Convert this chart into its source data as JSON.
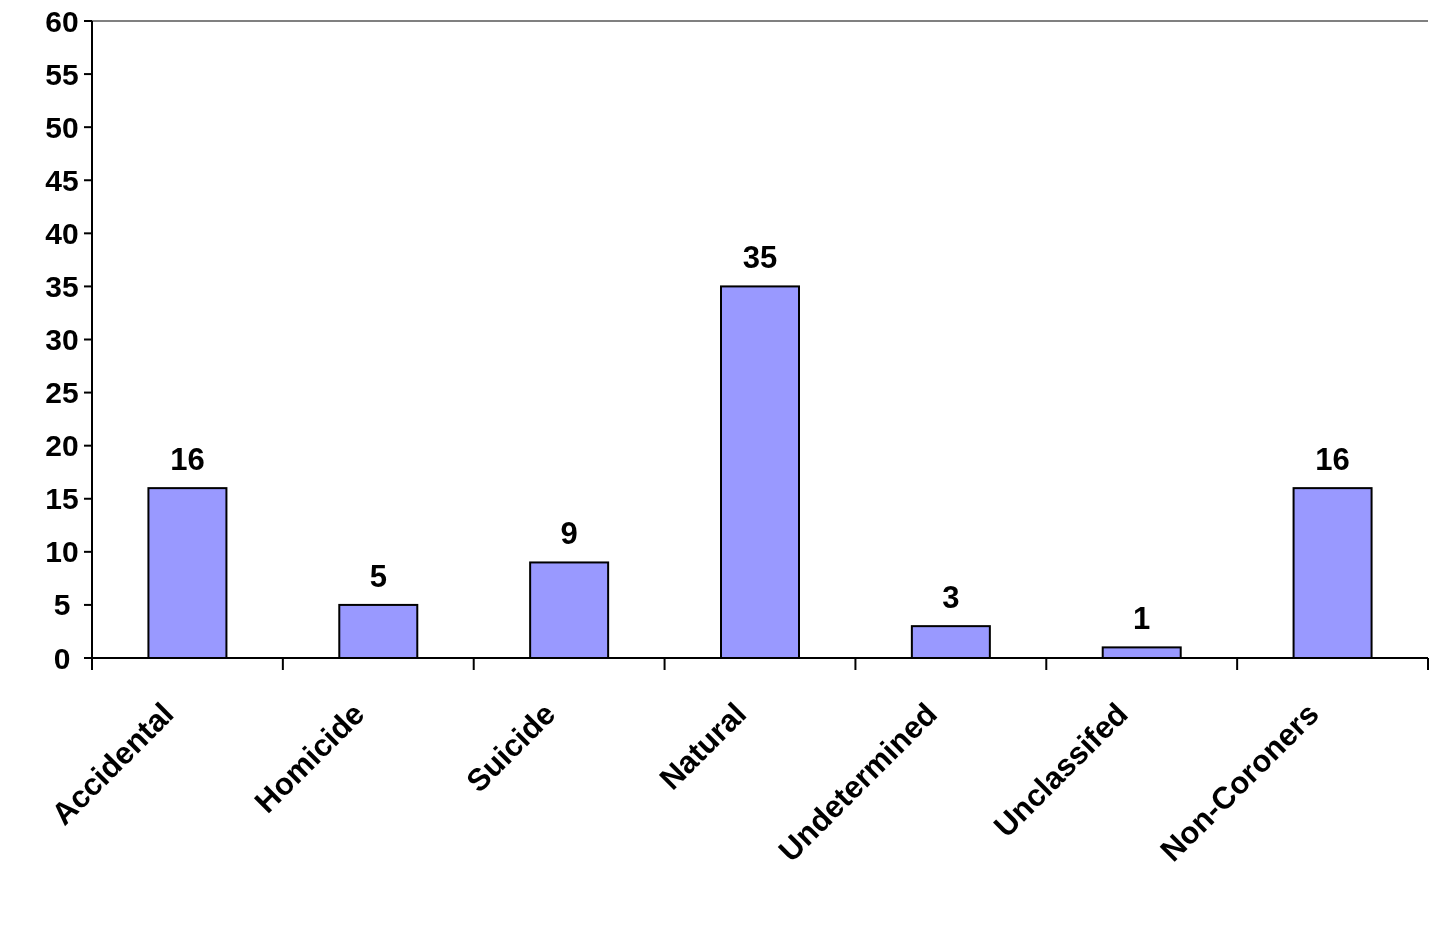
{
  "chart_data": {
    "type": "bar",
    "categories": [
      "Accidental",
      "Homicide",
      "Suicide",
      "Natural",
      "Undetermined",
      "Unclassifed",
      "Non-Coroners"
    ],
    "values": [
      16,
      5,
      9,
      35,
      3,
      1,
      16
    ],
    "color": "#9999ff",
    "ylim": [
      0,
      60
    ],
    "yticks": [
      0,
      5,
      10,
      15,
      20,
      25,
      30,
      35,
      40,
      45,
      50,
      55,
      60
    ],
    "data_labels": true,
    "grid": false
  }
}
